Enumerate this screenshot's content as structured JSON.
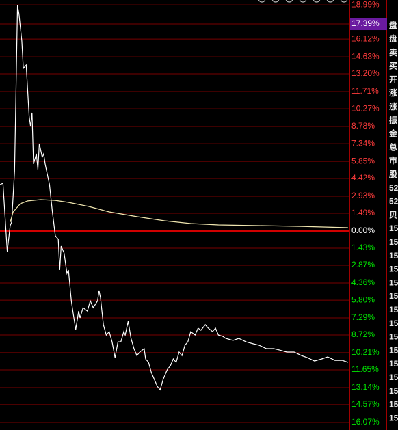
{
  "chart_data": {
    "type": "line",
    "series": [
      {
        "name": "price",
        "color": "#ffffff",
        "x": [
          0,
          2,
          5,
          7,
          8,
          10,
          12,
          13,
          15,
          16,
          18,
          20,
          21,
          22,
          23,
          25,
          26,
          27,
          29,
          30,
          31,
          34,
          36,
          38,
          40,
          41,
          42,
          44,
          46,
          47,
          49,
          50,
          52,
          54,
          55,
          57,
          60,
          62,
          64,
          67,
          68,
          69,
          71,
          73,
          75,
          77,
          79,
          81,
          83,
          85,
          86,
          88,
          90,
          92,
          94,
          96,
          99,
          100,
          102,
          104,
          106,
          108,
          110,
          112,
          114,
          115,
          117,
          119,
          121,
          123,
          125,
          127,
          129,
          131,
          134,
          136,
          138,
          141,
          143,
          146,
          148,
          150,
          153,
          155,
          160,
          164,
          169,
          174,
          178,
          183,
          188,
          192,
          197,
          202,
          207,
          211,
          216,
          221,
          225,
          230,
          235,
          239
        ],
        "values": [
          3.9,
          4.02,
          -1.72,
          0.46,
          0.75,
          5.05,
          18.94,
          18.25,
          15.96,
          13.66,
          13.95,
          9.64,
          8.78,
          9.93,
          5.63,
          6.49,
          5.17,
          7.35,
          6.2,
          6.49,
          5.63,
          3.9,
          1.61,
          -0.4,
          -0.69,
          -3.27,
          -1.26,
          -1.84,
          -3.56,
          -3.27,
          -5.86,
          -6.72,
          -8.27,
          -6.72,
          -7.29,
          -6.43,
          -6.72,
          -5.86,
          -6.43,
          -5.86,
          -4.99,
          -5.57,
          -7.86,
          -8.73,
          -8.44,
          -9.3,
          -10.62,
          -9.3,
          -9.3,
          -8.44,
          -8.73,
          -7.58,
          -9.01,
          -9.87,
          -10.45,
          -10.16,
          -9.87,
          -10.73,
          -11.02,
          -11.88,
          -12.46,
          -13.03,
          -13.32,
          -12.46,
          -11.88,
          -11.6,
          -11.31,
          -10.73,
          -11.02,
          -10.16,
          -10.45,
          -9.59,
          -9.3,
          -8.44,
          -8.73,
          -8.15,
          -8.32,
          -7.86,
          -8.15,
          -8.44,
          -8.15,
          -8.73,
          -8.84,
          -9.01,
          -9.18,
          -9.01,
          -9.3,
          -9.47,
          -9.59,
          -9.87,
          -9.87,
          -9.99,
          -10.16,
          -10.16,
          -10.45,
          -10.62,
          -10.91,
          -10.73,
          -10.56,
          -10.85,
          -10.85,
          -11.02
        ]
      },
      {
        "name": "average",
        "color": "#f0e6b0",
        "x": [
          7,
          9,
          14,
          19,
          28,
          38,
          47,
          61,
          75,
          94,
          113,
          131,
          150,
          178,
          207,
          239
        ],
        "values": [
          0.75,
          1.61,
          2.3,
          2.53,
          2.64,
          2.58,
          2.41,
          2.07,
          1.61,
          1.21,
          0.86,
          0.63,
          0.52,
          0.46,
          0.4,
          0.29
        ]
      }
    ],
    "xlim": [
      0,
      240
    ],
    "ylim": [
      -16.7,
      19.4
    ],
    "yticks": [
      {
        "value": 18.99,
        "label": "18.99%"
      },
      {
        "value": 17.39,
        "label": "17.39%",
        "highlight": true
      },
      {
        "value": 16.12,
        "label": "16.12%"
      },
      {
        "value": 14.63,
        "label": "14.63%"
      },
      {
        "value": 13.2,
        "label": "13.20%"
      },
      {
        "value": 11.71,
        "label": "11.71%"
      },
      {
        "value": 10.27,
        "label": "10.27%"
      },
      {
        "value": 8.78,
        "label": "8.78%"
      },
      {
        "value": 7.34,
        "label": "7.34%"
      },
      {
        "value": 5.85,
        "label": "5.85%"
      },
      {
        "value": 4.42,
        "label": "4.42%"
      },
      {
        "value": 2.93,
        "label": "2.93%"
      },
      {
        "value": 1.49,
        "label": "1.49%"
      },
      {
        "value": 0,
        "label": "0.00%"
      },
      {
        "value": -1.43,
        "label": "1.43%"
      },
      {
        "value": -2.87,
        "label": "2.87%"
      },
      {
        "value": -4.36,
        "label": "4.36%"
      },
      {
        "value": -5.8,
        "label": "5.80%"
      },
      {
        "value": -7.29,
        "label": "7.29%"
      },
      {
        "value": -8.72,
        "label": "8.72%"
      },
      {
        "value": -10.21,
        "label": "10.21%"
      },
      {
        "value": -11.65,
        "label": "11.65%"
      },
      {
        "value": -13.14,
        "label": "13.14%"
      },
      {
        "value": -14.57,
        "label": "14.57%"
      },
      {
        "value": -16.07,
        "label": "16.07%"
      }
    ],
    "grid": true,
    "up_color": "#ff3c3c",
    "down_color": "#00e600",
    "zero_color": "#ffffff",
    "highlight_color": "#6a1aa0"
  },
  "side_panel": [
    "盘",
    "盘",
    "卖",
    "买",
    "开",
    "涨",
    "涨",
    "振",
    "金",
    "总",
    "市",
    "股",
    "52",
    "52",
    "贝",
    "15",
    "15",
    "15",
    "15",
    "15",
    "15",
    "15",
    "15",
    "15",
    "15",
    "15",
    "15",
    "15",
    "15",
    "15"
  ]
}
